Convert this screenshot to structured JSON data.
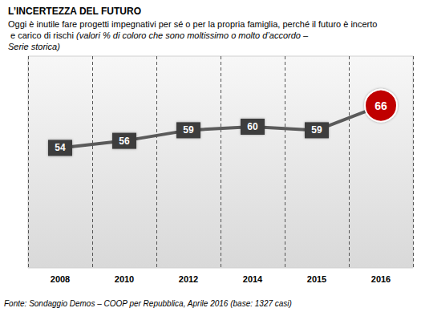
{
  "chart_data": {
    "type": "line",
    "title": "L’INCERTEZZA DEL FUTURO",
    "subtitle": "Oggi è inutile fare progetti impegnativi per sé o per la propria famiglia, perché il futuro è incerto e carico di rischi",
    "subtitle_note": "(valori % di coloro che sono moltissimo o molto d’accordo – Serie storica)",
    "source": "Fonte: Sondaggio Demos – COOP per Repubblica, Aprile 2016 (base: 1327 casi)",
    "categories": [
      "2008",
      "2010",
      "2012",
      "2014",
      "2015",
      "2016"
    ],
    "values": [
      54,
      56,
      59,
      60,
      59,
      66
    ],
    "color": "#5a5a5a",
    "colors": [
      "#3d3d3d",
      "#3d3d3d",
      "#3d3d3d",
      "#3d3d3d",
      "#3d3d3d",
      "#c00000"
    ],
    "ylim": [
      20,
      80
    ],
    "grid": true,
    "data_labels": true,
    "tick_labels": "x",
    "marker": "square"
  }
}
